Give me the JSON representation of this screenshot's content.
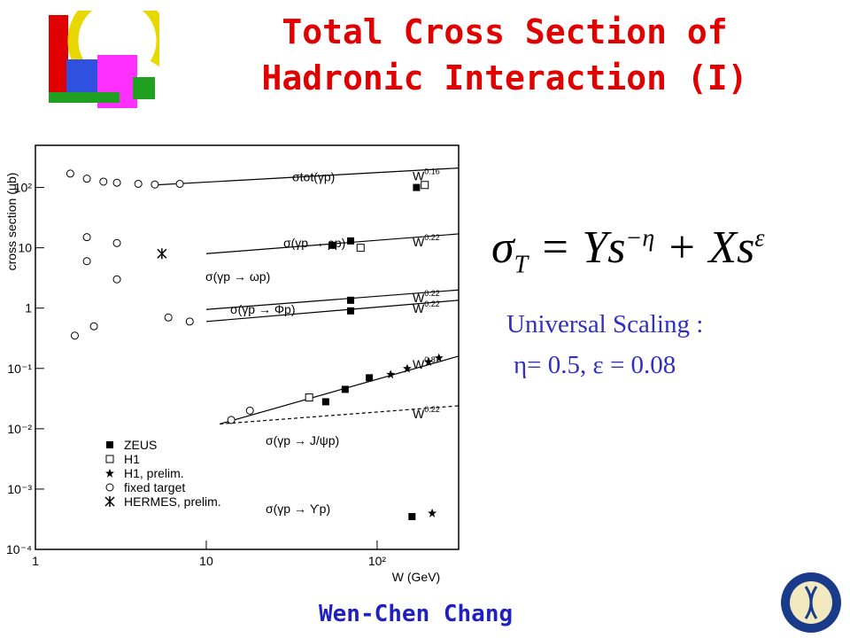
{
  "header": {
    "title_line1": "Total Cross Section of",
    "title_line2": "Hadronic Interaction (I)"
  },
  "figure": {
    "type": "scatter",
    "x_label": "W (GeV)",
    "y_label": "cross section (μb)",
    "log_x": true,
    "log_y": true,
    "xlim": [
      1,
      300
    ],
    "ylim": [
      0.0001,
      500
    ],
    "xticks": [
      1,
      10,
      {
        "value": 100,
        "label": "10²"
      }
    ],
    "yticks": [
      {
        "value": 100,
        "label": "10²"
      },
      10,
      1,
      {
        "value": 0.1,
        "label": "10⁻¹"
      },
      {
        "value": 0.01,
        "label": "10⁻²"
      },
      {
        "value": 0.001,
        "label": "10⁻³"
      },
      {
        "value": 0.0001,
        "label": "10⁻⁴"
      }
    ],
    "fits": [
      {
        "name": "σtot(γp)",
        "power": "W",
        "exp": "0.16",
        "x": [
          5,
          300
        ],
        "y": [
          110,
          210
        ],
        "dashed": false
      },
      {
        "name": "σ(γp → ρp)",
        "power": "W",
        "exp": "0.22",
        "x": [
          10,
          300
        ],
        "y": [
          8,
          17
        ],
        "dashed": false
      },
      {
        "name": "σ(γp → ωp)",
        "power": "W",
        "exp": "0.22",
        "x": [
          10,
          300
        ],
        "y": [
          0.95,
          2.0
        ],
        "dashed": false
      },
      {
        "name": "σ(γp → Φp)",
        "power": "W",
        "exp": "0.22",
        "x": [
          10,
          300
        ],
        "y": [
          0.6,
          1.35
        ],
        "dashed": false
      },
      {
        "name": "σ(γp → J/ψp)",
        "power": "W",
        "exp": "0.8",
        "x": [
          12,
          300
        ],
        "y": [
          0.012,
          0.16
        ],
        "dashed": false
      },
      {
        "name": "",
        "power": "W",
        "exp": "0.22",
        "x": [
          12,
          300
        ],
        "y": [
          0.012,
          0.024
        ],
        "dashed": true
      }
    ],
    "upsilon_label": "σ(γp → ϒp)",
    "series": [
      {
        "name": "ZEUS",
        "marker": "filled-square",
        "x": [
          170,
          55,
          70,
          70,
          70,
          50,
          65,
          90,
          160
        ],
        "y": [
          100,
          11,
          13,
          1.35,
          0.9,
          0.028,
          0.045,
          0.07,
          0.00035
        ]
      },
      {
        "name": "H1",
        "marker": "open-square",
        "x": [
          190,
          40,
          80
        ],
        "y": [
          110,
          0.033,
          10
        ]
      },
      {
        "name": "H1, prelim.",
        "marker": "star",
        "x": [
          120,
          150,
          200,
          230,
          210
        ],
        "y": [
          0.08,
          0.1,
          0.13,
          0.15,
          0.0004
        ]
      },
      {
        "name": "fixed target",
        "marker": "open-circle",
        "x": [
          1.6,
          2,
          2.5,
          3,
          4,
          5,
          7,
          2,
          3,
          2,
          3,
          1.7,
          2.2,
          8,
          6,
          14,
          18
        ],
        "y": [
          170,
          140,
          125,
          120,
          115,
          112,
          115,
          15,
          12,
          6,
          3,
          0.35,
          0.5,
          0.6,
          0.7,
          0.014,
          0.02
        ]
      },
      {
        "name": "HERMES, prelim.",
        "marker": "cross",
        "x": [
          5.5
        ],
        "y": [
          8
        ]
      }
    ]
  },
  "formula": {
    "lhs": "σ",
    "lhs_sub": "T",
    "rhs": "= Ys",
    "exp1": "−η",
    "plus": "+ Xs",
    "exp2": "ε"
  },
  "scaling": {
    "line1": "Universal Scaling :",
    "line2": "η= 0.5, ε = 0.08"
  },
  "footer": {
    "author": "Wen-Chen Chang"
  }
}
